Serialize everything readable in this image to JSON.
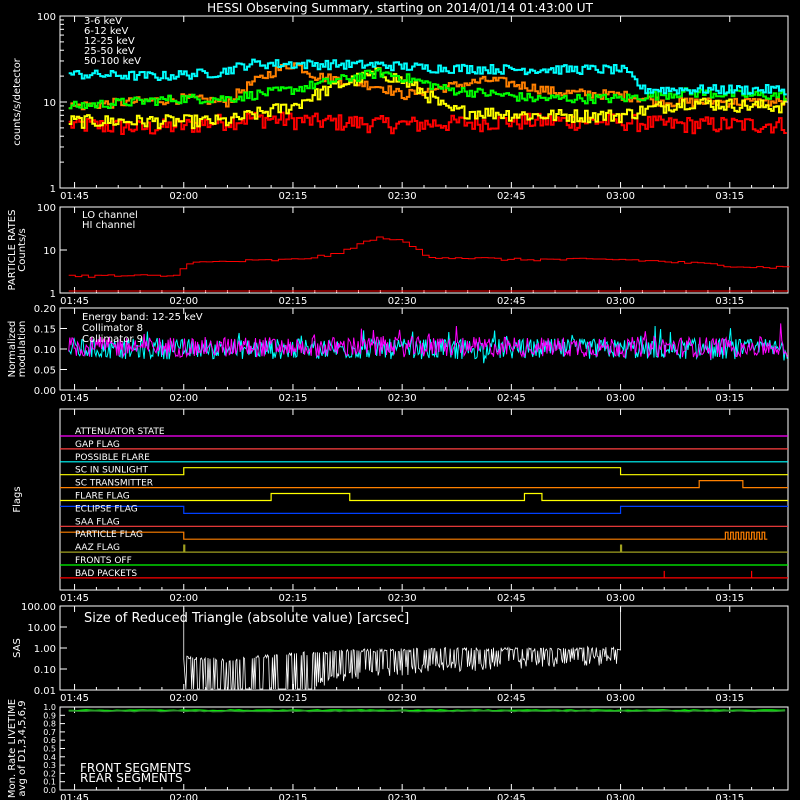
{
  "title": "HESSI Observing Summary, starting on 2014/01/14 01:43:00 UT",
  "time_ticks": [
    "01:45",
    "02:00",
    "02:15",
    "02:30",
    "02:45",
    "03:00",
    "03:15"
  ],
  "colors": {
    "3-6": "#ff0000",
    "6-12": "#ff8000",
    "12-25": "#ffff00",
    "25-50": "#00ff00",
    "50-100": "#00ffff",
    "magenta": "#ff00ff",
    "cyan": "#00ffff",
    "white": "#ffffff",
    "green_dark": "#2e8b2e"
  },
  "chart_data": [
    {
      "type": "line",
      "panel": "lightcurves",
      "ylabel": "counts/s/detector",
      "yscale": "log",
      "ylim": [
        1,
        100
      ],
      "ytick_labels": [
        "1",
        "10",
        "100"
      ],
      "x_range": [
        "01:43",
        "03:23"
      ],
      "series": [
        {
          "name": "3-6 keV",
          "color": "#ff0000",
          "t": [
            1.75,
            1.9,
            2.0,
            2.15,
            2.3,
            2.5,
            2.75,
            3.0,
            3.1,
            3.3
          ],
          "y": [
            5.5,
            5,
            5.3,
            6.5,
            6,
            5.5,
            6,
            6,
            5.5,
            5.5
          ]
        },
        {
          "name": "6-12 keV",
          "color": "#ff8000",
          "t": [
            1.75,
            2.0,
            2.1,
            2.25,
            2.3,
            2.45,
            2.5,
            2.7,
            2.85,
            3.0,
            3.1,
            3.3
          ],
          "y": [
            9,
            11,
            10,
            28,
            20,
            15,
            12,
            18,
            13,
            12,
            10,
            10
          ]
        },
        {
          "name": "12-25 keV",
          "color": "#ffff00",
          "t": [
            1.75,
            2.0,
            2.1,
            2.25,
            2.45,
            2.6,
            2.8,
            3.0,
            3.15,
            3.3
          ],
          "y": [
            6,
            6,
            6,
            9,
            22,
            8,
            7,
            7,
            10,
            9
          ]
        },
        {
          "name": "25-50 keV",
          "color": "#00ff00",
          "t": [
            1.75,
            2.0,
            2.1,
            2.25,
            2.45,
            2.6,
            2.8,
            3.0,
            3.15,
            3.3
          ],
          "y": [
            9,
            11,
            11,
            14,
            22,
            14,
            11,
            11,
            13,
            12
          ]
        },
        {
          "name": "50-100 keV",
          "color": "#00ffff",
          "t": [
            1.75,
            1.95,
            2.0,
            2.08,
            2.15,
            2.45,
            2.55,
            2.75,
            3.0,
            3.05,
            3.3
          ],
          "y": [
            21,
            20,
            21,
            22,
            28,
            27,
            25,
            24,
            24,
            14,
            14
          ]
        }
      ]
    },
    {
      "type": "line",
      "panel": "particle_rates",
      "ylabel": "PARTICLE RATES Counts/s",
      "yscale": "log",
      "ytick_labels": [
        "1",
        "10",
        "100"
      ],
      "series": [
        {
          "name": "LO channel",
          "color": "#ff0000",
          "t": [
            1.75,
            1.98,
            2.0,
            2.25,
            2.35,
            2.45,
            2.5,
            2.55,
            2.75,
            3.0,
            3.15,
            3.3
          ],
          "y": [
            2.5,
            2.5,
            5,
            6,
            8,
            20,
            15,
            7,
            6,
            6,
            5,
            4
          ]
        },
        {
          "name": "HI channel",
          "color": "#ff0000",
          "t": [
            1.75,
            3.3
          ],
          "y": [
            1,
            1
          ]
        }
      ]
    },
    {
      "type": "line",
      "panel": "modulation",
      "ylabel": "Normalized modulation",
      "ylim": [
        0,
        0.2
      ],
      "ytick_labels": [
        "0.00",
        "0.05",
        "0.10",
        "0.15",
        "0.20"
      ],
      "annotation": "Energy band: 12-25 keV",
      "series": [
        {
          "name": "Collimator 8",
          "color": "#00ffff",
          "mean": 0.1
        },
        {
          "name": "Collimator 9",
          "color": "#ff00ff",
          "mean": 0.105
        }
      ]
    },
    {
      "type": "line",
      "panel": "sas",
      "ylabel": "SAS",
      "yscale": "log",
      "ytick_labels": [
        "0.01",
        "0.10",
        "1.00",
        "10.00",
        "100.00"
      ],
      "annotation": "Size of Reduced Triangle (absolute value) [arcsec]",
      "series": [
        {
          "name": "",
          "color": "#ffffff",
          "t": [
            2.0,
            2.1,
            2.2,
            2.4,
            2.6,
            2.8,
            3.0
          ],
          "y": [
            0.3,
            0.2,
            0.35,
            0.6,
            0.7,
            0.7,
            0.8
          ]
        }
      ]
    },
    {
      "type": "line",
      "panel": "livetime",
      "ylabel": "Mon. Rate LIVETIME avg of D1,3,4,5,6,9",
      "ylim": [
        0,
        1.0
      ],
      "ytick_labels": [
        "0.0",
        "0.1",
        "0.2",
        "0.3",
        "0.4",
        "0.5",
        "0.6",
        "0.7",
        "0.8",
        "0.9",
        "1.0"
      ],
      "series": [
        {
          "name": "FRONT SEGMENTS",
          "color": "#00ff00",
          "t": [
            1.75,
            3.3
          ],
          "y": [
            0.96,
            0.96
          ]
        },
        {
          "name": "REAR SEGMENTS",
          "color": "#2e8b2e",
          "t": [
            1.75,
            3.3
          ],
          "y": [
            0.95,
            0.95
          ]
        }
      ]
    }
  ],
  "flags": [
    {
      "name": "ATTENUATOR STATE",
      "color": "#ff00ff"
    },
    {
      "name": "GAP FLAG",
      "color": "#ff4040"
    },
    {
      "name": "POSSIBLE FLARE",
      "color": "#00ffff"
    },
    {
      "name": "SC IN SUNLIGHT",
      "color": "#ffff00"
    },
    {
      "name": "SC TRANSMITTER",
      "color": "#ff8000"
    },
    {
      "name": "FLARE FLAG",
      "color": "#ffff00"
    },
    {
      "name": "ECLIPSE FLAG",
      "color": "#0040ff"
    },
    {
      "name": "SAA FLAG",
      "color": "#ff4040"
    },
    {
      "name": "PARTICLE FLAG",
      "color": "#ff8000"
    },
    {
      "name": "AAZ FLAG",
      "color": "#a0a020"
    },
    {
      "name": "FRONTS OFF",
      "color": "#00ff00"
    },
    {
      "name": "BAD PACKETS",
      "color": "#ff0000"
    }
  ],
  "flags_label": "Flags"
}
